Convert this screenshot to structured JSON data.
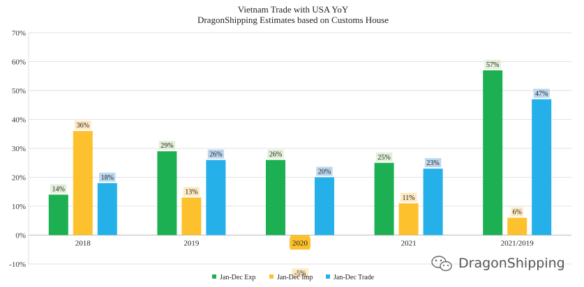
{
  "chart_data": {
    "type": "bar",
    "title": "Vietnam Trade with USA  YoY",
    "subtitle": "DragonShipping Estimates based on Customs House",
    "categories": [
      "2018",
      "2019",
      "2020",
      "2021",
      "2021/2019"
    ],
    "series": [
      {
        "name": "Jan-Dec Exp",
        "color": "#1db052",
        "label_bg": "#e3efd9",
        "values": [
          14,
          29,
          26,
          25,
          57
        ]
      },
      {
        "name": "Jan-Dec Imp",
        "color": "#fcc12d",
        "label_bg": "#fde9c2",
        "values": [
          36,
          13,
          -5,
          11,
          6
        ]
      },
      {
        "name": "Jan-Dec Trade",
        "color": "#26b0ea",
        "label_bg": "#bcd7ee",
        "values": [
          18,
          26,
          20,
          23,
          47
        ]
      }
    ],
    "ylim": [
      -10,
      70
    ],
    "yticks": [
      -10,
      0,
      10,
      20,
      30,
      40,
      50,
      60,
      70
    ],
    "y_format": "percent",
    "grid": true,
    "legend_position": "bottom"
  },
  "watermark": "DragonShipping"
}
